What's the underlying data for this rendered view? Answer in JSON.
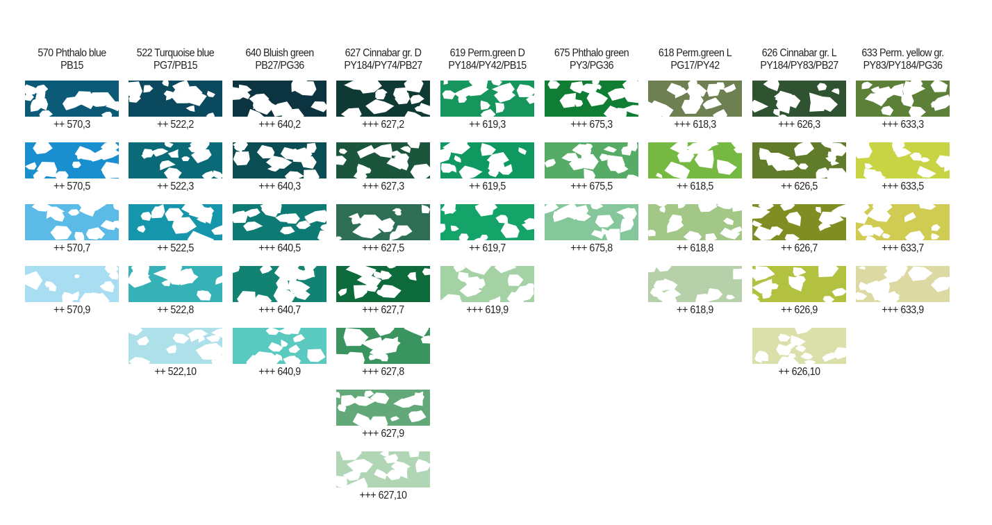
{
  "columns": [
    {
      "name": "570 Phthalo blue",
      "pigments": "PB15",
      "swatches": [
        {
          "code": "++ 570,3",
          "color": "#0a5a78"
        },
        {
          "code": "++ 570,5",
          "color": "#1a8fcf"
        },
        {
          "code": "++ 570,7",
          "color": "#5bbbe6"
        },
        {
          "code": "++ 570,9",
          "color": "#a9def2"
        }
      ]
    },
    {
      "name": "522 Turquoise blue",
      "pigments": "PG7/PB15",
      "swatches": [
        {
          "code": "++ 522,2",
          "color": "#0b4a5e"
        },
        {
          "code": "++ 522,3",
          "color": "#0a6a77"
        },
        {
          "code": "++ 522,5",
          "color": "#1596aa"
        },
        {
          "code": "++ 522,8",
          "color": "#36b2b6"
        },
        {
          "code": "++ 522,10",
          "color": "#ade0e8"
        }
      ]
    },
    {
      "name": "640 Bluish green",
      "pigments": "PB27/PG36",
      "swatches": [
        {
          "code": "+++ 640,2",
          "color": "#0b3340"
        },
        {
          "code": "+++ 640,3",
          "color": "#0a4d52"
        },
        {
          "code": "+++ 640,5",
          "color": "#0d7a74"
        },
        {
          "code": "+++ 640,7",
          "color": "#128273"
        },
        {
          "code": "+++ 640,9",
          "color": "#5ac9c0"
        }
      ]
    },
    {
      "name": "627 Cinnabar gr. D",
      "pigments": "PY184/PY74/PB27",
      "swatches": [
        {
          "code": "+++ 627,2",
          "color": "#0f3a33"
        },
        {
          "code": "+++ 627,3",
          "color": "#1a553c"
        },
        {
          "code": "+++ 627,5",
          "color": "#2e6e54"
        },
        {
          "code": "+++ 627,7",
          "color": "#0d6a3a"
        },
        {
          "code": "+++ 627,8",
          "color": "#3a945f"
        },
        {
          "code": "+++ 627,9",
          "color": "#62a878"
        },
        {
          "code": "+++ 627,10",
          "color": "#b1d6b6"
        }
      ]
    },
    {
      "name": "619 Perm.green D",
      "pigments": "PY184/PY42/PB15",
      "swatches": [
        {
          "code": "++ 619,3",
          "color": "#16955c"
        },
        {
          "code": "++ 619,5",
          "color": "#0f9860"
        },
        {
          "code": "++ 619,7",
          "color": "#14a46a"
        },
        {
          "code": "+++ 619,9",
          "color": "#a5d2a5"
        }
      ]
    },
    {
      "name": "675 Phthalo green",
      "pigments": "PY3/PG36",
      "swatches": [
        {
          "code": "+++ 675,3",
          "color": "#0f7d34"
        },
        {
          "code": "+++ 675,5",
          "color": "#56ab66"
        },
        {
          "code": "+++ 675,8",
          "color": "#86c69b"
        }
      ]
    },
    {
      "name": "618 Perm.green L",
      "pigments": "PG17/PY42",
      "swatches": [
        {
          "code": "+++ 618,3",
          "color": "#6e7f52"
        },
        {
          "code": "++ 618,5",
          "color": "#76b942"
        },
        {
          "code": "++ 618,8",
          "color": "#a2c786"
        },
        {
          "code": "++ 618,9",
          "color": "#b6d1aa"
        }
      ]
    },
    {
      "name": "626 Cinnabar gr. L",
      "pigments": "PY184/PY83/PB27",
      "swatches": [
        {
          "code": "+++ 626,3",
          "color": "#2f5230"
        },
        {
          "code": "++ 626,5",
          "color": "#607b2a"
        },
        {
          "code": "++ 626,7",
          "color": "#7f8d23"
        },
        {
          "code": "++ 626,9",
          "color": "#b3c140"
        },
        {
          "code": "++ 626,10",
          "color": "#dbe0aa"
        }
      ]
    },
    {
      "name": "633 Perm. yellow gr.",
      "pigments": "PY83/PY184/PG36",
      "swatches": [
        {
          "code": "+++ 633,3",
          "color": "#5c8037"
        },
        {
          "code": "+++ 633,5",
          "color": "#c8d444"
        },
        {
          "code": "+++ 633,7",
          "color": "#d0cb52"
        },
        {
          "code": "+++ 633,9",
          "color": "#ddd9a3"
        }
      ]
    }
  ]
}
